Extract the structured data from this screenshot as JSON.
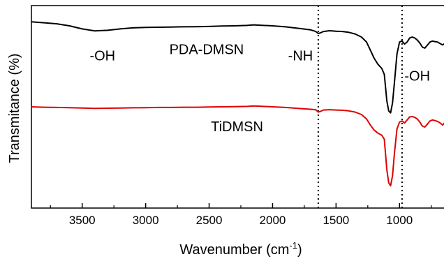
{
  "chart_data": {
    "type": "line",
    "xlabel": "Wavenumber (cm",
    "xlabel_superscript": "-1",
    "xlabel_suffix": ")",
    "ylabel": "Transmitance (%)",
    "xlim": [
      3900,
      600
    ],
    "x_reversed": true,
    "x_ticks": [
      3500,
      3000,
      2500,
      2000,
      1500,
      1000
    ],
    "grid": false,
    "legend": "none",
    "reference_lines": [
      1640,
      980
    ],
    "series": [
      {
        "name": "PDA-DMSN",
        "color": "#000000",
        "points": [
          [
            3900,
            0.92
          ],
          [
            3800,
            0.915
          ],
          [
            3700,
            0.91
          ],
          [
            3600,
            0.9
          ],
          [
            3500,
            0.885
          ],
          [
            3400,
            0.875
          ],
          [
            3300,
            0.878
          ],
          [
            3200,
            0.885
          ],
          [
            3100,
            0.89
          ],
          [
            3000,
            0.892
          ],
          [
            2900,
            0.893
          ],
          [
            2800,
            0.894
          ],
          [
            2700,
            0.895
          ],
          [
            2600,
            0.896
          ],
          [
            2500,
            0.897
          ],
          [
            2400,
            0.899
          ],
          [
            2300,
            0.9
          ],
          [
            2200,
            0.902
          ],
          [
            2150,
            0.905
          ],
          [
            2100,
            0.903
          ],
          [
            2000,
            0.9
          ],
          [
            1900,
            0.895
          ],
          [
            1800,
            0.888
          ],
          [
            1700,
            0.88
          ],
          [
            1660,
            0.872
          ],
          [
            1640,
            0.862
          ],
          [
            1620,
            0.866
          ],
          [
            1600,
            0.872
          ],
          [
            1550,
            0.876
          ],
          [
            1500,
            0.873
          ],
          [
            1450,
            0.872
          ],
          [
            1400,
            0.868
          ],
          [
            1350,
            0.86
          ],
          [
            1300,
            0.845
          ],
          [
            1260,
            0.82
          ],
          [
            1230,
            0.78
          ],
          [
            1200,
            0.74
          ],
          [
            1170,
            0.71
          ],
          [
            1140,
            0.69
          ],
          [
            1120,
            0.66
          ],
          [
            1100,
            0.53
          ],
          [
            1085,
            0.48
          ],
          [
            1070,
            0.47
          ],
          [
            1055,
            0.52
          ],
          [
            1040,
            0.62
          ],
          [
            1020,
            0.76
          ],
          [
            1000,
            0.82
          ],
          [
            980,
            0.825
          ],
          [
            960,
            0.81
          ],
          [
            940,
            0.82
          ],
          [
            920,
            0.84
          ],
          [
            900,
            0.845
          ],
          [
            880,
            0.84
          ],
          [
            860,
            0.83
          ],
          [
            840,
            0.815
          ],
          [
            820,
            0.795
          ],
          [
            800,
            0.79
          ],
          [
            780,
            0.805
          ],
          [
            760,
            0.82
          ],
          [
            740,
            0.825
          ],
          [
            720,
            0.822
          ],
          [
            700,
            0.82
          ],
          [
            680,
            0.812
          ],
          [
            660,
            0.806
          ],
          [
            640,
            0.815
          ],
          [
            620,
            0.81
          ],
          [
            600,
            0.815
          ]
        ]
      },
      {
        "name": "TiDMSN",
        "color": "#e00000",
        "points": [
          [
            3900,
            0.5
          ],
          [
            3800,
            0.498
          ],
          [
            3700,
            0.497
          ],
          [
            3600,
            0.496
          ],
          [
            3500,
            0.494
          ],
          [
            3400,
            0.492
          ],
          [
            3300,
            0.493
          ],
          [
            3200,
            0.494
          ],
          [
            3100,
            0.495
          ],
          [
            3000,
            0.496
          ],
          [
            2900,
            0.497
          ],
          [
            2800,
            0.497
          ],
          [
            2700,
            0.498
          ],
          [
            2600,
            0.498
          ],
          [
            2500,
            0.499
          ],
          [
            2400,
            0.5
          ],
          [
            2300,
            0.501
          ],
          [
            2200,
            0.502
          ],
          [
            2150,
            0.504
          ],
          [
            2100,
            0.503
          ],
          [
            2000,
            0.5
          ],
          [
            1900,
            0.497
          ],
          [
            1800,
            0.492
          ],
          [
            1700,
            0.488
          ],
          [
            1660,
            0.485
          ],
          [
            1640,
            0.474
          ],
          [
            1620,
            0.478
          ],
          [
            1600,
            0.484
          ],
          [
            1550,
            0.486
          ],
          [
            1500,
            0.484
          ],
          [
            1450,
            0.483
          ],
          [
            1400,
            0.48
          ],
          [
            1350,
            0.474
          ],
          [
            1300,
            0.462
          ],
          [
            1260,
            0.44
          ],
          [
            1230,
            0.41
          ],
          [
            1200,
            0.385
          ],
          [
            1170,
            0.37
          ],
          [
            1140,
            0.36
          ],
          [
            1120,
            0.34
          ],
          [
            1100,
            0.19
          ],
          [
            1085,
            0.125
          ],
          [
            1070,
            0.11
          ],
          [
            1055,
            0.16
          ],
          [
            1040,
            0.27
          ],
          [
            1020,
            0.39
          ],
          [
            1000,
            0.425
          ],
          [
            980,
            0.43
          ],
          [
            960,
            0.42
          ],
          [
            940,
            0.435
          ],
          [
            920,
            0.45
          ],
          [
            900,
            0.452
          ],
          [
            880,
            0.448
          ],
          [
            860,
            0.44
          ],
          [
            840,
            0.425
          ],
          [
            820,
            0.405
          ],
          [
            800,
            0.4
          ],
          [
            780,
            0.415
          ],
          [
            760,
            0.43
          ],
          [
            740,
            0.435
          ],
          [
            720,
            0.432
          ],
          [
            700,
            0.428
          ],
          [
            680,
            0.42
          ],
          [
            660,
            0.41
          ],
          [
            640,
            0.425
          ],
          [
            620,
            0.418
          ],
          [
            600,
            0.425
          ]
        ]
      }
    ],
    "annotations": [
      {
        "text": "-OH",
        "x": 3340,
        "y": 0.73
      },
      {
        "text": "PDA-DMSN",
        "x": 2520,
        "y": 0.76
      },
      {
        "text": "-NH",
        "x": 1780,
        "y": 0.73
      },
      {
        "text": "-OH",
        "x": 860,
        "y": 0.63
      },
      {
        "text": "TiDMSN",
        "x": 2280,
        "y": 0.38
      }
    ]
  }
}
